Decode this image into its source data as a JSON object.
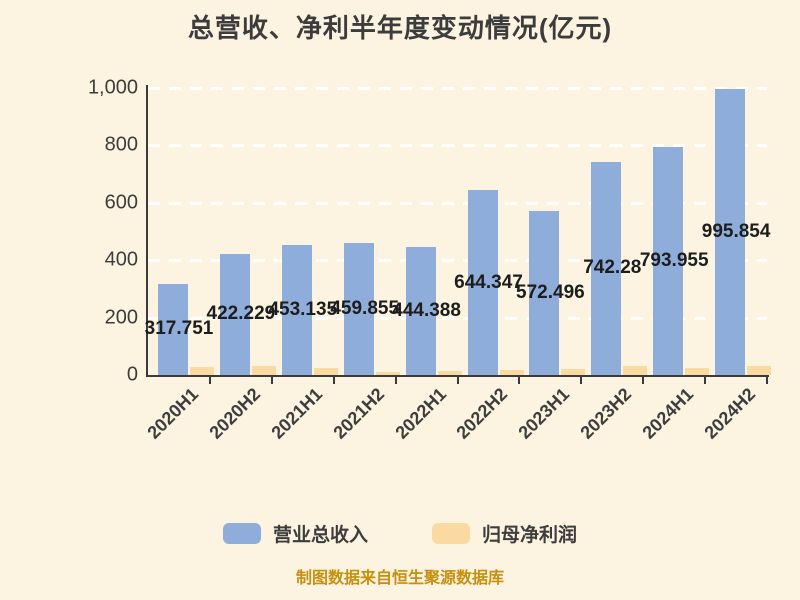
{
  "title": "总营收、净利半年度变动情况(亿元)",
  "footer": "制图数据来自恒生聚源数据库",
  "colors": {
    "background": "#fcf3e1",
    "bar_revenue": "#8fadda",
    "bar_profit": "#fbdaa1",
    "title_text": "#3c3c3c",
    "axis_text": "#3d3d3d",
    "value_label_text": "#1d1d1d",
    "gridline": "#ffffff",
    "axis_line": "#3a3a3a",
    "footer_text": "#c6900e"
  },
  "chart_data": {
    "type": "bar",
    "title": "总营收、净利半年度变动情况(亿元)",
    "categories": [
      "2020H1",
      "2020H2",
      "2021H1",
      "2021H2",
      "2022H1",
      "2022H2",
      "2023H1",
      "2023H2",
      "2024H1",
      "2024H2"
    ],
    "series": [
      {
        "name": "营业总收入",
        "color": "#8fadda",
        "values": [
          317.751,
          422.229,
          453.135,
          459.855,
          444.388,
          644.347,
          572.496,
          742.28,
          793.955,
          995.854
        ],
        "labels": [
          "317.751",
          "422.229",
          "453.135",
          "459.855",
          "444.388",
          "644.347",
          "572.496",
          "742.28",
          "793.955",
          "995.854"
        ],
        "labels_visible": true
      },
      {
        "name": "归母净利润",
        "color": "#fbdaa1",
        "values": [
          28,
          31,
          23,
          9,
          13,
          18,
          22,
          31,
          23,
          31
        ],
        "labels_visible": false
      }
    ],
    "xlabel": "",
    "ylabel": "",
    "ylim": [
      0,
      1000
    ],
    "yticks": [
      0,
      200,
      400,
      600,
      800,
      1000
    ],
    "ytick_labels": [
      "0",
      "200",
      "400",
      "600",
      "800",
      "1,000"
    ],
    "grid": "horizontal-dashed-white",
    "legend_position": "bottom",
    "value_label_position": "centered-inside-bar"
  }
}
